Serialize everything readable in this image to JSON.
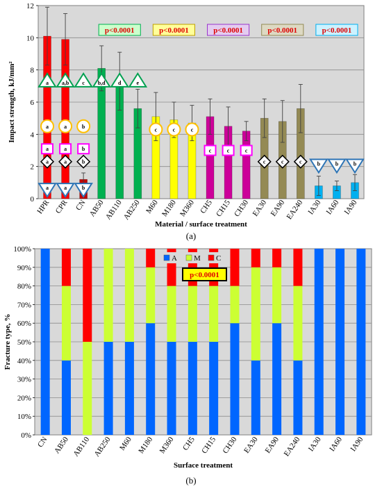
{
  "chart_data": [
    {
      "type": "bar",
      "panel_label": "(a)",
      "xlabel": "Material / surface treatment",
      "ylabel": "Impact strength, kJ/mm²",
      "ylim": [
        0,
        12
      ],
      "yticks": [
        0,
        2,
        4,
        6,
        8,
        10,
        12
      ],
      "grid": true,
      "categories": [
        "HPR",
        "CPR",
        "CN",
        "AB50",
        "AB110",
        "AB250",
        "M60",
        "M180",
        "M360",
        "CH5",
        "CH15",
        "CH30",
        "EA30",
        "EA90",
        "EA240",
        "IA30",
        "IA60",
        "IA90"
      ],
      "values": [
        10.1,
        9.9,
        1.2,
        8.1,
        7.3,
        5.6,
        5.1,
        4.9,
        4.7,
        5.1,
        4.5,
        4.2,
        5.0,
        4.8,
        5.6,
        0.8,
        0.8,
        1.0
      ],
      "errors": [
        1.8,
        1.6,
        0.4,
        1.4,
        1.8,
        1.2,
        1.5,
        1.1,
        1.1,
        1.1,
        1.2,
        0.6,
        1.2,
        1.3,
        1.5,
        0.6,
        0.3,
        0.5
      ],
      "bar_colors": [
        "#ff0000",
        "#ff0000",
        "#c00000",
        "#00b050",
        "#00b050",
        "#00b050",
        "#ffff00",
        "#ffff00",
        "#ffff00",
        "#cc0099",
        "#cc0099",
        "#cc0099",
        "#948a54",
        "#948a54",
        "#948a54",
        "#00b0f0",
        "#00b0f0",
        "#00b0f0"
      ],
      "p_boxes": [
        {
          "text": "p<0.0001",
          "group_start": 3,
          "group_end": 5,
          "fill": "#ccffcc",
          "border": "#00b050"
        },
        {
          "text": "p<0.0001",
          "group_start": 6,
          "group_end": 8,
          "fill": "#ffff99",
          "border": "#c0a000"
        },
        {
          "text": "p<0.0001",
          "group_start": 9,
          "group_end": 11,
          "fill": "#e4ccf0",
          "border": "#9933cc"
        },
        {
          "text": "p<0.0001",
          "group_start": 12,
          "group_end": 14,
          "fill": "#ddd9c3",
          "border": "#948a54"
        },
        {
          "text": "p<0.0001",
          "group_start": 15,
          "group_end": 17,
          "fill": "#ccf2ff",
          "border": "#00b0f0"
        }
      ],
      "annotations": [
        {
          "shape": "triangle-up",
          "y": 7.3,
          "labels": [
            "a",
            "a,b",
            "c",
            "b,d",
            "d",
            "e"
          ],
          "start": 0,
          "color": "#00a050"
        },
        {
          "shape": "circle",
          "y": 4.5,
          "labels": [
            "a",
            "a",
            "b"
          ],
          "start": 0,
          "color": "#ffc000"
        },
        {
          "shape": "circle",
          "y": 4.3,
          "labels": [
            "c",
            "c",
            "c"
          ],
          "start": 6,
          "color": "#ffc000"
        },
        {
          "shape": "square",
          "y": 3.1,
          "labels": [
            "a",
            "a",
            "b"
          ],
          "start": 0,
          "color": "#ff00ff"
        },
        {
          "shape": "square",
          "y": 3.0,
          "labels": [
            "c",
            "c",
            "c"
          ],
          "start": 9,
          "color": "#ff00ff"
        },
        {
          "shape": "diamond",
          "y": 2.3,
          "labels": [
            "a",
            "a",
            "b"
          ],
          "start": 0,
          "color": "#000000"
        },
        {
          "shape": "diamond",
          "y": 2.3,
          "labels": [
            "c",
            "c",
            "c"
          ],
          "start": 12,
          "color": "#000000"
        },
        {
          "shape": "triangle-down",
          "y": 0.6,
          "labels": [
            "a",
            "a",
            "b"
          ],
          "start": 0,
          "color": "#2e75b6"
        },
        {
          "shape": "triangle-down",
          "y": 2.1,
          "labels": [
            "b",
            "b",
            "b"
          ],
          "start": 15,
          "color": "#2e75b6"
        }
      ]
    },
    {
      "type": "bar",
      "stacked": true,
      "panel_label": "(b)",
      "xlabel": "Surface treatment",
      "ylabel": "Fracture type, %",
      "ylim": [
        0,
        100
      ],
      "yticks": [
        "0%",
        "10%",
        "20%",
        "30%",
        "40%",
        "50%",
        "60%",
        "70%",
        "80%",
        "90%",
        "100%"
      ],
      "grid": true,
      "legend_position": "top-center",
      "p_label": "p<0.0001",
      "categories": [
        "CN",
        "AB50",
        "AB110",
        "AB250",
        "M60",
        "M180",
        "M360",
        "CH5",
        "CH15",
        "CH30",
        "EA30",
        "EA90",
        "EA240",
        "IA30",
        "IA60",
        "IA90"
      ],
      "series": [
        {
          "name": "A",
          "color": "#0066ff",
          "values": [
            100,
            40,
            0,
            50,
            50,
            60,
            50,
            50,
            50,
            60,
            40,
            60,
            40,
            100,
            100,
            100
          ]
        },
        {
          "name": "M",
          "color": "#ccff33",
          "values": [
            0,
            40,
            50,
            50,
            50,
            30,
            30,
            30,
            30,
            20,
            50,
            30,
            40,
            0,
            0,
            0
          ]
        },
        {
          "name": "C",
          "color": "#ff0000",
          "values": [
            0,
            20,
            50,
            0,
            0,
            10,
            20,
            20,
            20,
            20,
            10,
            10,
            20,
            0,
            0,
            0
          ]
        }
      ]
    }
  ]
}
